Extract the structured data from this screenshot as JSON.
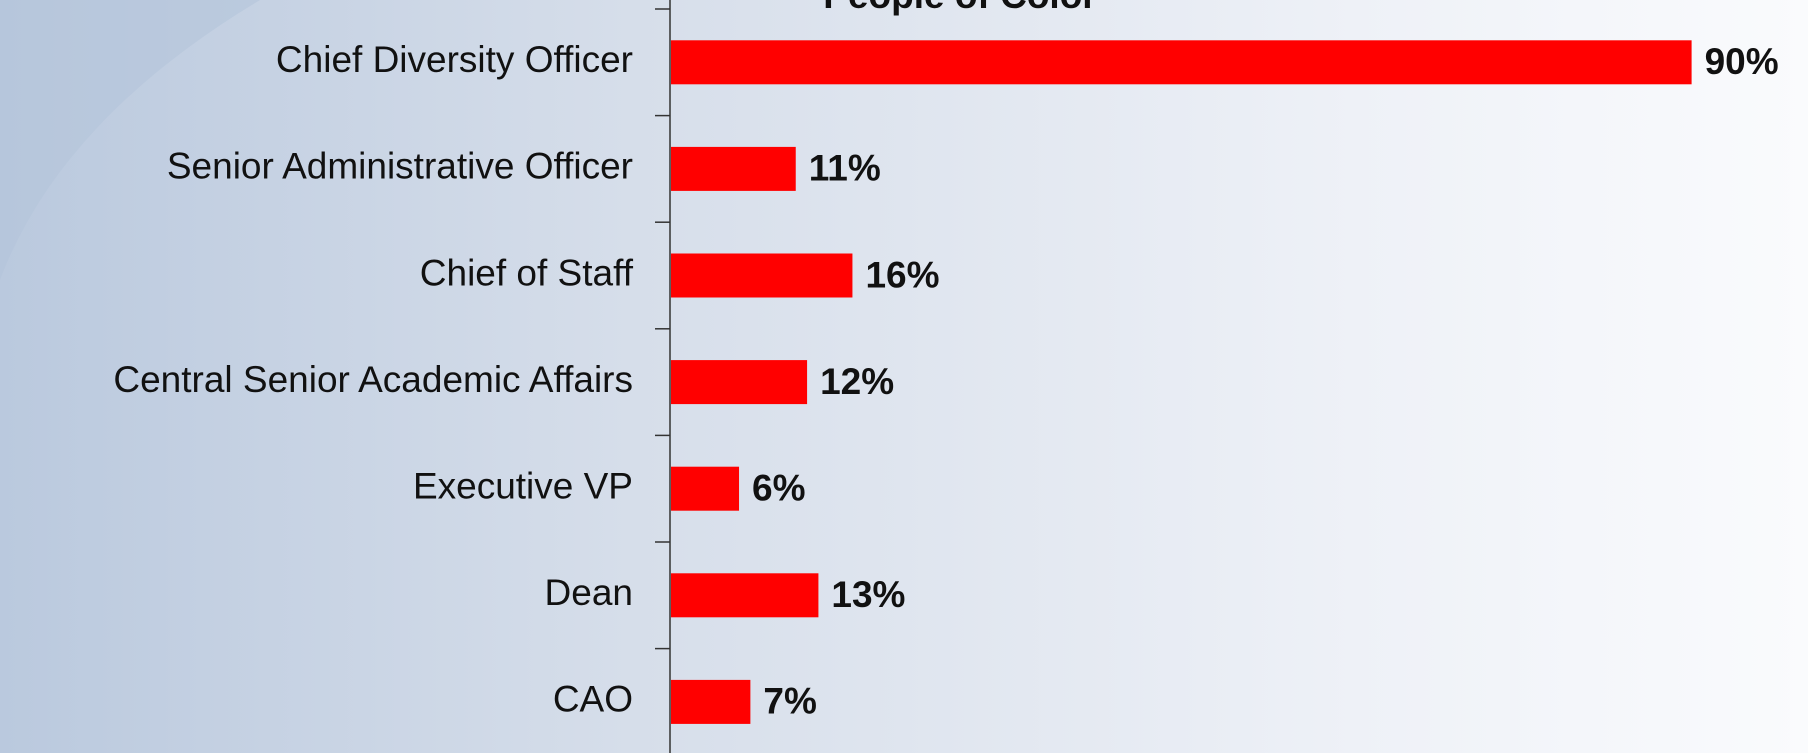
{
  "chart_data": {
    "type": "bar",
    "orientation": "horizontal",
    "title": "People of Color",
    "categories": [
      "Chief Diversity Officer",
      "Senior Administrative Officer",
      "Chief of Staff",
      "Central Senior Academic Affairs",
      "Executive VP",
      "Dean",
      "CAO"
    ],
    "values": [
      90,
      11,
      16,
      12,
      6,
      13,
      7
    ],
    "value_labels": [
      "90%",
      "11%",
      "16%",
      "12%",
      "6%",
      "13%",
      "7%"
    ],
    "color": "#ff0000"
  }
}
